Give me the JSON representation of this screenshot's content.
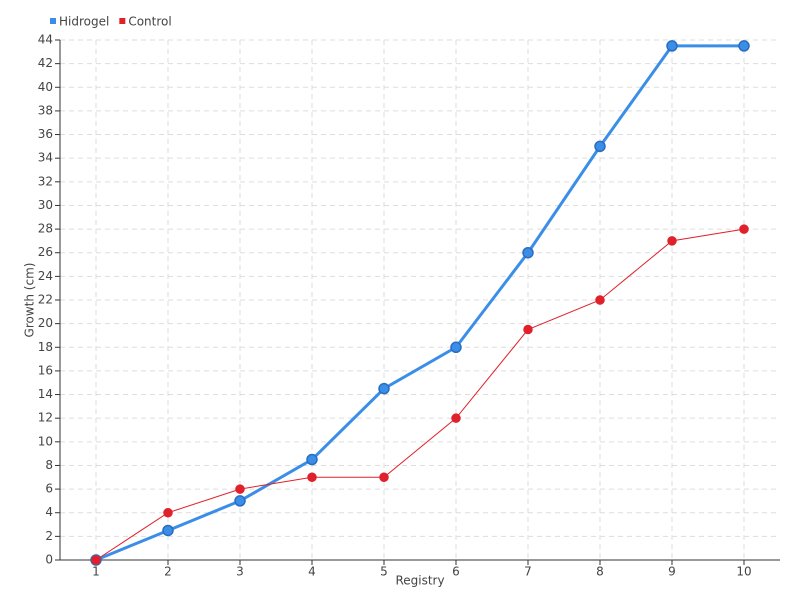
{
  "chart_data": {
    "type": "line",
    "x": [
      1,
      2,
      3,
      4,
      5,
      6,
      7,
      8,
      9,
      10
    ],
    "xlim": [
      0.5,
      10.5
    ],
    "xticks": [
      1,
      2,
      3,
      4,
      5,
      6,
      7,
      8,
      9,
      10
    ],
    "ylim": [
      0,
      44
    ],
    "yticks": [
      0,
      2,
      4,
      6,
      8,
      10,
      12,
      14,
      16,
      18,
      20,
      22,
      24,
      26,
      28,
      30,
      32,
      34,
      36,
      38,
      40,
      42,
      44
    ],
    "x_label": "Registry",
    "y_label": "Growth (cm)",
    "grid": true,
    "legend": "top-left",
    "series": [
      {
        "name": "Hidrogel",
        "color": "#3b8ee8",
        "values": [
          0,
          2.5,
          5,
          8.5,
          14.5,
          18,
          26,
          35,
          43.5,
          43.5
        ]
      },
      {
        "name": "Control",
        "color": "#e0202a",
        "values": [
          0,
          4,
          6,
          7,
          7,
          12,
          19.5,
          22,
          27,
          28
        ]
      }
    ]
  }
}
